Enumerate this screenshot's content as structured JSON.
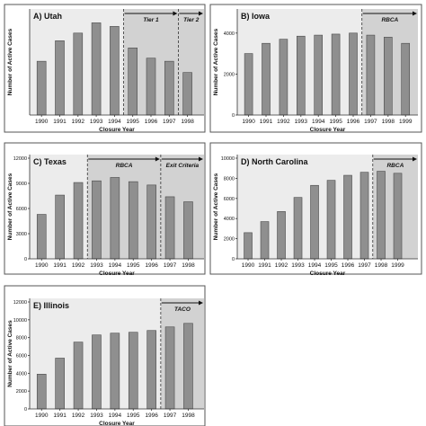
{
  "chart_data": [
    {
      "type": "bar",
      "title": "A) Utah",
      "categories": [
        "1990",
        "1991",
        "1992",
        "1993",
        "1994",
        "1995",
        "1996",
        "1997",
        "1998"
      ],
      "values": [
        1050,
        1450,
        1600,
        1800,
        1730,
        1310,
        1110,
        1050,
        830
      ],
      "ylim": [
        0,
        2000
      ],
      "yticks": [],
      "xlabel": "Closure Year",
      "ylabel": "Number of Active Cases",
      "periods": [
        {
          "label": "Tier 1",
          "from": "1995",
          "to": "1997"
        },
        {
          "label": "Tier 2",
          "from": "1998",
          "to": "1998"
        }
      ]
    },
    {
      "type": "bar",
      "title": "B) Iowa",
      "categories": [
        "1990",
        "1991",
        "1992",
        "1993",
        "1994",
        "1995",
        "1996",
        "1997",
        "1998",
        "1999"
      ],
      "values": [
        3000,
        3500,
        3700,
        3850,
        3900,
        3950,
        4000,
        3900,
        3800,
        3500
      ],
      "ylim": [
        0,
        5000
      ],
      "yticks": [
        "0",
        "2000",
        "4000"
      ],
      "ytick_values": [
        0,
        2000,
        4000
      ],
      "xlabel": "Closure Year",
      "ylabel": "Number of Active Cases",
      "periods": [
        {
          "label": "RBCA",
          "from": "1997",
          "to": "1999"
        }
      ]
    },
    {
      "type": "bar",
      "title": "C) Texas",
      "categories": [
        "1990",
        "1991",
        "1992",
        "1993",
        "1994",
        "1995",
        "1996",
        "1997",
        "1998"
      ],
      "values": [
        5300,
        7600,
        9100,
        9300,
        9700,
        9200,
        8800,
        7400,
        6800
      ],
      "ylim": [
        0,
        12000
      ],
      "yticks": [
        "0",
        "3000",
        "6000",
        "9000",
        "12000"
      ],
      "ytick_values": [
        0,
        3000,
        6000,
        9000,
        12000
      ],
      "xlabel": "Closure Year",
      "ylabel": "Number of Active Cases",
      "periods": [
        {
          "label": "RBCA",
          "from": "1993",
          "to": "1996"
        },
        {
          "label": "Exit Criteria",
          "from": "1997",
          "to": "1998"
        }
      ]
    },
    {
      "type": "bar",
      "title": "D) North Carolina",
      "categories": [
        "1990",
        "1991",
        "1992",
        "1993",
        "1994",
        "1995",
        "1996",
        "1997",
        "1998",
        "1999"
      ],
      "values": [
        2600,
        3700,
        4700,
        6100,
        7300,
        7800,
        8300,
        8600,
        8700,
        8500
      ],
      "ylim": [
        0,
        10000
      ],
      "yticks": [
        "0",
        "2000",
        "4000",
        "6000",
        "8000",
        "10000"
      ],
      "ytick_values": [
        0,
        2000,
        4000,
        6000,
        8000,
        10000
      ],
      "xlabel": "Closure Year",
      "ylabel": "Number of Active Cases",
      "periods": [
        {
          "label": "RBCA",
          "from": "1998",
          "to": "1999"
        }
      ]
    },
    {
      "type": "bar",
      "title": "E) Illinois",
      "categories": [
        "1990",
        "1991",
        "1992",
        "1993",
        "1994",
        "1995",
        "1996",
        "1997",
        "1998"
      ],
      "values": [
        3900,
        5700,
        7500,
        8300,
        8500,
        8600,
        8800,
        9200,
        9600
      ],
      "ylim": [
        0,
        12000
      ],
      "yticks": [
        "0",
        "2000",
        "4000",
        "6000",
        "8000",
        "10000",
        "12000"
      ],
      "ytick_values": [
        0,
        2000,
        4000,
        6000,
        8000,
        10000,
        12000
      ],
      "xlabel": "Closure Year",
      "ylabel": "Number of Active Cases",
      "periods": [
        {
          "label": "TACO",
          "from": "1997",
          "to": "1998"
        }
      ]
    }
  ],
  "colors": {
    "bar_fill": "#8f8f8f",
    "bar_stroke": "#4a4a4a",
    "plot_background": "#ececec",
    "period_shading": "#d2d2d2"
  }
}
